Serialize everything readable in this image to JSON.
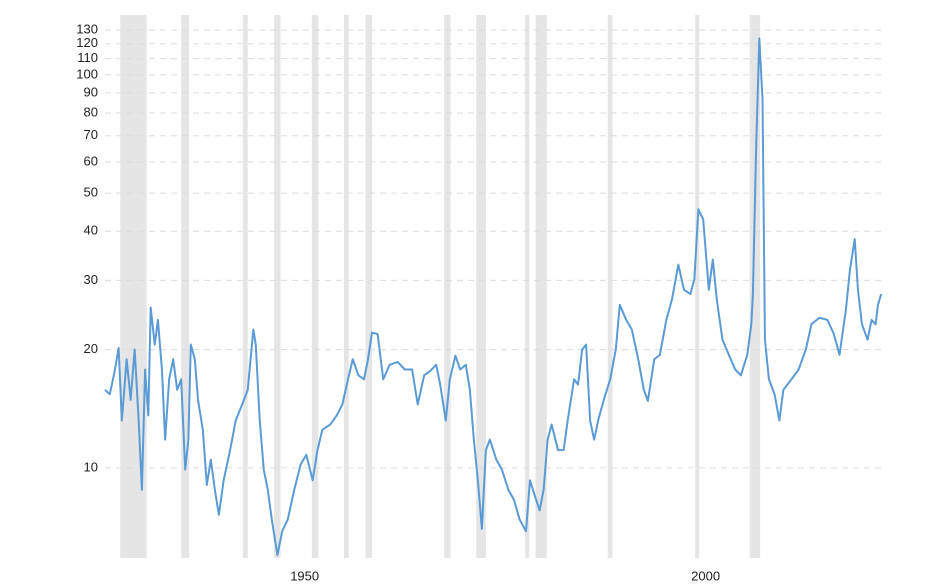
{
  "chart_data": {
    "type": "line",
    "log_scale": true,
    "grid": true,
    "color": "#5b9bd5",
    "shade_color": "#e5e5e5",
    "xlim": [
      1925.1,
      2022.0
    ],
    "ylim": [
      5.9,
      142
    ],
    "xticks": [
      1950,
      2000
    ],
    "yticks": [
      10,
      20,
      30,
      40,
      50,
      60,
      70,
      80,
      90,
      100,
      110,
      120,
      130
    ],
    "shaded_periods": [
      [
        1927.0,
        1930.3
      ],
      [
        1934.6,
        1935.6
      ],
      [
        1942.3,
        1942.9
      ],
      [
        1946.2,
        1947.0
      ],
      [
        1950.9,
        1951.7
      ],
      [
        1954.9,
        1955.5
      ],
      [
        1957.6,
        1958.4
      ],
      [
        1967.4,
        1968.2
      ],
      [
        1971.4,
        1972.6
      ],
      [
        1977.5,
        1978.0
      ],
      [
        1978.8,
        1980.2
      ],
      [
        1987.8,
        1988.4
      ],
      [
        1998.7,
        1999.2
      ],
      [
        2005.5,
        2006.8
      ]
    ],
    "x": [
      1925.1,
      1925.7,
      1926.3,
      1926.8,
      1927.2,
      1927.8,
      1928.3,
      1928.8,
      1929.3,
      1929.7,
      1930.1,
      1930.5,
      1930.8,
      1931.3,
      1931.7,
      1932.2,
      1932.6,
      1933.1,
      1933.6,
      1934.1,
      1934.6,
      1935.1,
      1935.5,
      1935.8,
      1936.3,
      1936.7,
      1937.3,
      1937.8,
      1938.3,
      1938.8,
      1939.3,
      1939.9,
      1940.7,
      1941.4,
      1942.2,
      1942.9,
      1943.6,
      1943.9,
      1944.4,
      1944.9,
      1945.4,
      1945.9,
      1946.6,
      1947.2,
      1947.9,
      1948.7,
      1949.5,
      1950.2,
      1951.0,
      1951.6,
      1952.2,
      1953.2,
      1954.0,
      1954.7,
      1955.4,
      1956.0,
      1956.7,
      1957.4,
      1957.9,
      1958.4,
      1959.1,
      1959.8,
      1960.6,
      1961.6,
      1962.5,
      1963.4,
      1964.1,
      1964.9,
      1965.6,
      1966.4,
      1966.9,
      1967.6,
      1968.1,
      1968.8,
      1969.4,
      1970.1,
      1970.6,
      1971.1,
      1971.6,
      1972.1,
      1972.6,
      1973.1,
      1973.9,
      1974.6,
      1975.4,
      1976.1,
      1976.8,
      1977.6,
      1978.1,
      1978.7,
      1979.3,
      1979.8,
      1980.3,
      1980.8,
      1981.6,
      1982.3,
      1982.8,
      1983.6,
      1984.1,
      1984.6,
      1985.1,
      1985.6,
      1986.1,
      1986.6,
      1987.3,
      1988.1,
      1988.8,
      1989.3,
      1990.1,
      1990.8,
      1991.6,
      1992.3,
      1992.8,
      1993.6,
      1994.3,
      1995.1,
      1995.8,
      1996.6,
      1997.3,
      1998.1,
      1998.6,
      1999.1,
      1999.7,
      2000.4,
      2000.9,
      2001.4,
      2002.1,
      2002.9,
      2003.7,
      2004.4,
      2005.2,
      2005.7,
      2005.9,
      2006.3,
      2006.7,
      2007.1,
      2007.4,
      2007.9,
      2008.6,
      2009.2,
      2009.7,
      2010.7,
      2011.6,
      2012.5,
      2013.2,
      2014.2,
      2015.2,
      2016.0,
      2016.7,
      2017.5,
      2018.0,
      2018.6,
      2019.0,
      2019.5,
      2020.2,
      2020.7,
      2021.2,
      2021.5,
      2021.9
    ],
    "values": [
      15.8,
      15.4,
      17.6,
      20.2,
      13.2,
      18.9,
      14.9,
      20.0,
      13.2,
      8.8,
      17.8,
      13.6,
      25.6,
      20.6,
      23.8,
      17.8,
      11.8,
      16.8,
      18.9,
      15.8,
      16.8,
      9.9,
      11.8,
      20.6,
      18.9,
      14.9,
      12.5,
      9.05,
      10.5,
      8.8,
      7.6,
      9.3,
      11.1,
      13.2,
      14.5,
      15.8,
      22.5,
      20.6,
      13.2,
      9.9,
      8.8,
      7.4,
      6.0,
      6.9,
      7.4,
      8.8,
      10.2,
      10.8,
      9.3,
      11.1,
      12.5,
      12.9,
      13.6,
      14.5,
      16.8,
      18.9,
      17.2,
      16.8,
      18.9,
      22.1,
      21.9,
      16.8,
      18.3,
      18.6,
      17.8,
      17.8,
      14.5,
      17.2,
      17.6,
      18.3,
      16.3,
      13.2,
      16.8,
      19.3,
      17.8,
      18.3,
      15.8,
      11.8,
      9.3,
      7.0,
      11.1,
      11.8,
      10.5,
      9.9,
      8.8,
      8.3,
      7.4,
      6.9,
      9.3,
      8.5,
      7.8,
      8.8,
      11.8,
      12.9,
      11.1,
      11.1,
      13.2,
      16.8,
      16.3,
      20.0,
      20.6,
      13.2,
      11.8,
      13.2,
      14.9,
      16.8,
      20.0,
      26.0,
      23.8,
      22.5,
      18.9,
      15.8,
      14.8,
      18.9,
      19.4,
      23.8,
      26.8,
      32.9,
      28.4,
      27.7,
      30.2,
      45.5,
      42.9,
      28.4,
      33.9,
      26.8,
      21.2,
      19.4,
      17.8,
      17.2,
      19.4,
      23.2,
      27.7,
      64.8,
      123.8,
      86.8,
      21.2,
      16.8,
      15.4,
      13.2,
      15.8,
      16.8,
      17.8,
      20.0,
      23.2,
      24.1,
      23.8,
      21.9,
      19.4,
      25.3,
      31.9,
      38.2,
      28.4,
      23.2,
      21.2,
      23.8,
      23.2,
      26.0,
      27.7
    ]
  }
}
